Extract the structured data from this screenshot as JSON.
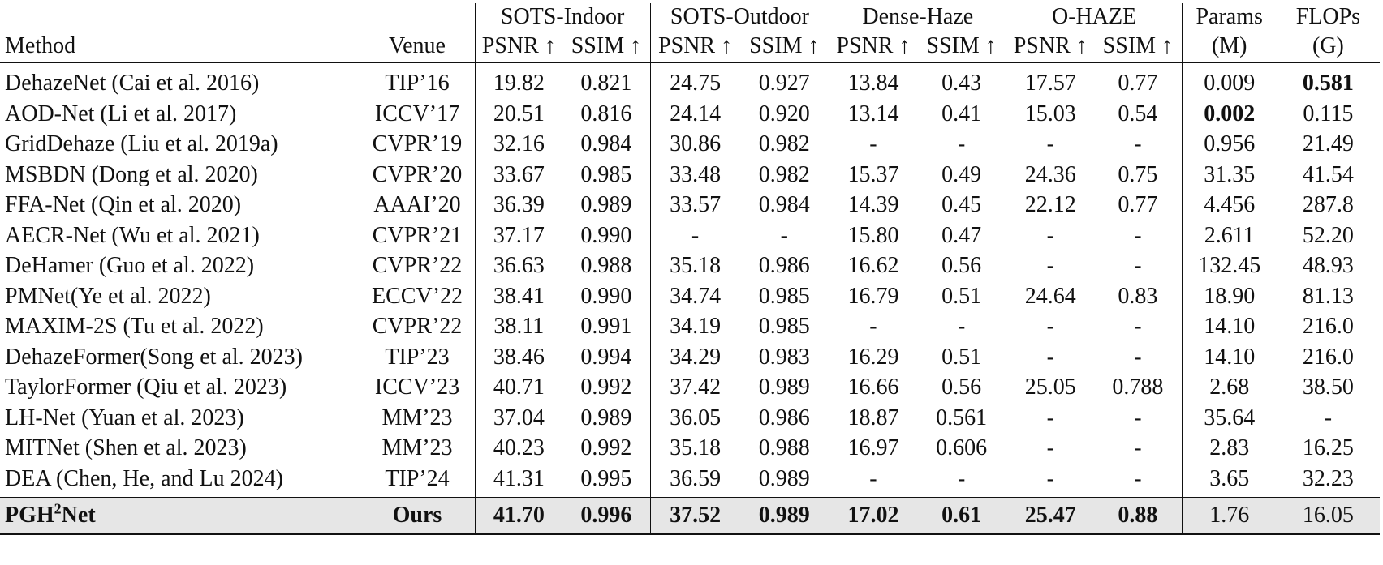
{
  "headers": {
    "method": "Method",
    "venue": "Venue",
    "groups": [
      "SOTS-Indoor",
      "SOTS-Outdoor",
      "Dense-Haze",
      "O-HAZE"
    ],
    "params_top": "Params",
    "params_unit": "(M)",
    "flops_top": "FLOPs",
    "flops_unit": "(G)",
    "psnr": "PSNR ↑",
    "ssim": "SSIM ↑"
  },
  "rows": [
    {
      "method": "DehazeNet (Cai et al. 2016)",
      "venue": "TIP’16",
      "vals": [
        "19.82",
        "0.821",
        "24.75",
        "0.927",
        "13.84",
        "0.43",
        "17.57",
        "0.77",
        "0.009",
        "0.581"
      ],
      "bold": [
        9
      ]
    },
    {
      "method": "AOD-Net (Li et al. 2017)",
      "venue": "ICCV’17",
      "vals": [
        "20.51",
        "0.816",
        "24.14",
        "0.920",
        "13.14",
        "0.41",
        "15.03",
        "0.54",
        "0.002",
        "0.115"
      ],
      "bold": [
        8
      ]
    },
    {
      "method": "GridDehaze (Liu et al. 2019a)",
      "venue": "CVPR’19",
      "vals": [
        "32.16",
        "0.984",
        "30.86",
        "0.982",
        "-",
        "-",
        "-",
        "-",
        "0.956",
        "21.49"
      ],
      "bold": []
    },
    {
      "method": "MSBDN (Dong et al. 2020)",
      "venue": "CVPR’20",
      "vals": [
        "33.67",
        "0.985",
        "33.48",
        "0.982",
        "15.37",
        "0.49",
        "24.36",
        "0.75",
        "31.35",
        "41.54"
      ],
      "bold": []
    },
    {
      "method": "FFA-Net (Qin et al. 2020)",
      "venue": "AAAI’20",
      "vals": [
        "36.39",
        "0.989",
        "33.57",
        "0.984",
        "14.39",
        "0.45",
        "22.12",
        "0.77",
        "4.456",
        "287.8"
      ],
      "bold": []
    },
    {
      "method": "AECR-Net (Wu et al. 2021)",
      "venue": "CVPR’21",
      "vals": [
        "37.17",
        "0.990",
        "-",
        "-",
        "15.80",
        "0.47",
        "-",
        "-",
        "2.611",
        "52.20"
      ],
      "bold": []
    },
    {
      "method": "DeHamer (Guo et al. 2022)",
      "venue": "CVPR’22",
      "vals": [
        "36.63",
        "0.988",
        "35.18",
        "0.986",
        "16.62",
        "0.56",
        "-",
        "-",
        "132.45",
        "48.93"
      ],
      "bold": []
    },
    {
      "method": "PMNet(Ye et al. 2022)",
      "venue": "ECCV’22",
      "vals": [
        "38.41",
        "0.990",
        "34.74",
        "0.985",
        "16.79",
        "0.51",
        "24.64",
        "0.83",
        "18.90",
        "81.13"
      ],
      "bold": []
    },
    {
      "method": "MAXIM-2S (Tu et al. 2022)",
      "venue": "CVPR’22",
      "vals": [
        "38.11",
        "0.991",
        "34.19",
        "0.985",
        "-",
        "-",
        "-",
        "-",
        "14.10",
        "216.0"
      ],
      "bold": []
    },
    {
      "method": "DehazeFormer(Song et al. 2023)",
      "venue": "TIP’23",
      "vals": [
        "38.46",
        "0.994",
        "34.29",
        "0.983",
        "16.29",
        "0.51",
        "-",
        "-",
        "14.10",
        "216.0"
      ],
      "bold": []
    },
    {
      "method": "TaylorFormer (Qiu et al. 2023)",
      "venue": "ICCV’23",
      "vals": [
        "40.71",
        "0.992",
        "37.42",
        "0.989",
        "16.66",
        "0.56",
        "25.05",
        "0.788",
        "2.68",
        "38.50"
      ],
      "bold": []
    },
    {
      "method": "LH-Net (Yuan et al. 2023)",
      "venue": "MM’23",
      "vals": [
        "37.04",
        "0.989",
        "36.05",
        "0.986",
        "18.87",
        "0.561",
        "-",
        "-",
        "35.64",
        "-"
      ],
      "bold": []
    },
    {
      "method": "MITNet (Shen et al. 2023)",
      "venue": "MM’23",
      "vals": [
        "40.23",
        "0.992",
        "35.18",
        "0.988",
        "16.97",
        "0.606",
        "-",
        "-",
        "2.83",
        "16.25"
      ],
      "bold": []
    },
    {
      "method": "DEA (Chen, He, and Lu 2024)",
      "venue": "TIP’24",
      "vals": [
        "41.31",
        "0.995",
        "36.59",
        "0.989",
        "-",
        "-",
        "-",
        "-",
        "3.65",
        "32.23"
      ],
      "bold": []
    }
  ],
  "ours": {
    "method_base": "PGH",
    "method_sup": "2",
    "method_tail": "Net",
    "venue": "Ours",
    "vals": [
      "41.70",
      "0.996",
      "37.52",
      "0.989",
      "17.02",
      "0.61",
      "25.47",
      "0.88",
      "1.76",
      "16.05"
    ],
    "bold_count": 8
  }
}
